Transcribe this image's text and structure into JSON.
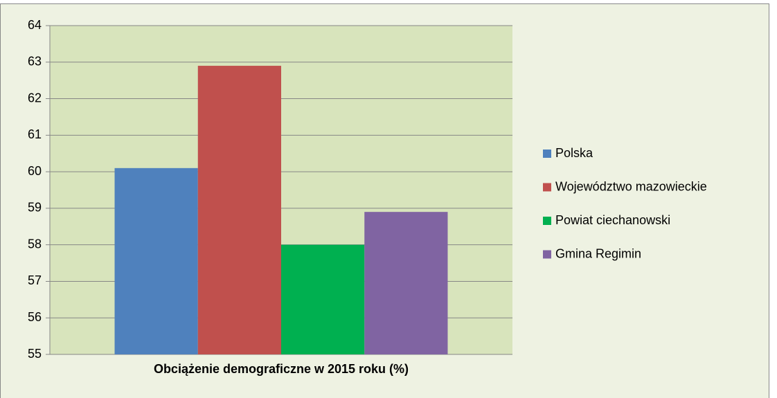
{
  "chart_data": {
    "type": "bar",
    "categories": [
      "Obciążenie demograficzne w 2015 roku (%)"
    ],
    "series": [
      {
        "name": "Polska",
        "color": "#4f81bd",
        "values": [
          60.1
        ]
      },
      {
        "name": "Województwo mazowieckie",
        "color": "#c0504d",
        "values": [
          62.9
        ]
      },
      {
        "name": "Powiat ciechanowski",
        "color": "#00b050",
        "values": [
          58.0
        ]
      },
      {
        "name": "Gmina Regimin",
        "color": "#8064a2",
        "values": [
          58.9
        ]
      }
    ],
    "ylim": [
      55,
      64
    ],
    "yticks": [
      55,
      56,
      57,
      58,
      59,
      60,
      61,
      62,
      63,
      64
    ],
    "grid": true,
    "legend": "right"
  }
}
